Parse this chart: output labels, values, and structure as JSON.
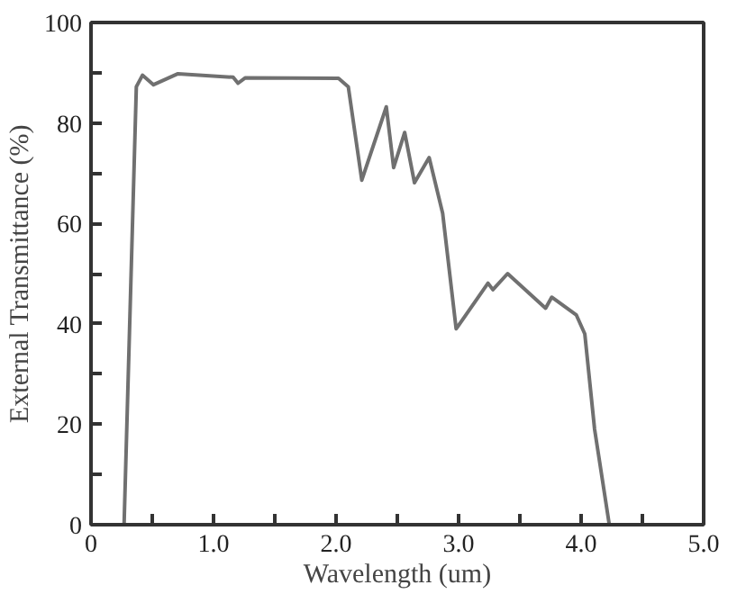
{
  "chart_data": {
    "type": "line",
    "xlabel": "Wavelength (um)",
    "ylabel": "External Transmittance (%)",
    "x": [
      0.27,
      0.37,
      0.42,
      0.51,
      0.71,
      1.16,
      1.2,
      1.26,
      2.02,
      2.1,
      2.21,
      2.41,
      2.47,
      2.56,
      2.64,
      2.76,
      2.87,
      2.98,
      3.24,
      3.28,
      3.4,
      3.71,
      3.76,
      3.96,
      4.03,
      4.11,
      4.23
    ],
    "series": [
      {
        "color": "#707070",
        "values": [
          0,
          87.2,
          89.5,
          87.6,
          89.8,
          89.1,
          87.9,
          89,
          88.9,
          87.2,
          68.6,
          83.2,
          71.1,
          78.1,
          68.1,
          73.1,
          62,
          39,
          48.1,
          46.8,
          50,
          43.1,
          45.3,
          41.8,
          38,
          19,
          0
        ]
      }
    ],
    "xlim": [
      0,
      5
    ],
    "ylim": [
      0,
      100
    ],
    "xticks": [
      0,
      {
        "value": 0.5,
        "label": null
      },
      {
        "value": 1,
        "label": "1.0"
      },
      {
        "value": 1.5,
        "label": null
      },
      {
        "value": 2,
        "label": "2.0"
      },
      {
        "value": 2.5,
        "label": null
      },
      {
        "value": 3,
        "label": "3.0"
      },
      {
        "value": 3.5,
        "label": null
      },
      {
        "value": 4,
        "label": "4.0"
      },
      {
        "value": 4.5,
        "label": null
      },
      {
        "value": 5,
        "label": "5.0"
      }
    ],
    "yticks": [
      0,
      {
        "value": 10,
        "label": null
      },
      20,
      {
        "value": 30,
        "label": null
      },
      40,
      {
        "value": 50,
        "label": null
      },
      60,
      {
        "value": 70,
        "label": null
      },
      80,
      {
        "value": 90,
        "label": null
      },
      100
    ],
    "line_style": "solid"
  }
}
